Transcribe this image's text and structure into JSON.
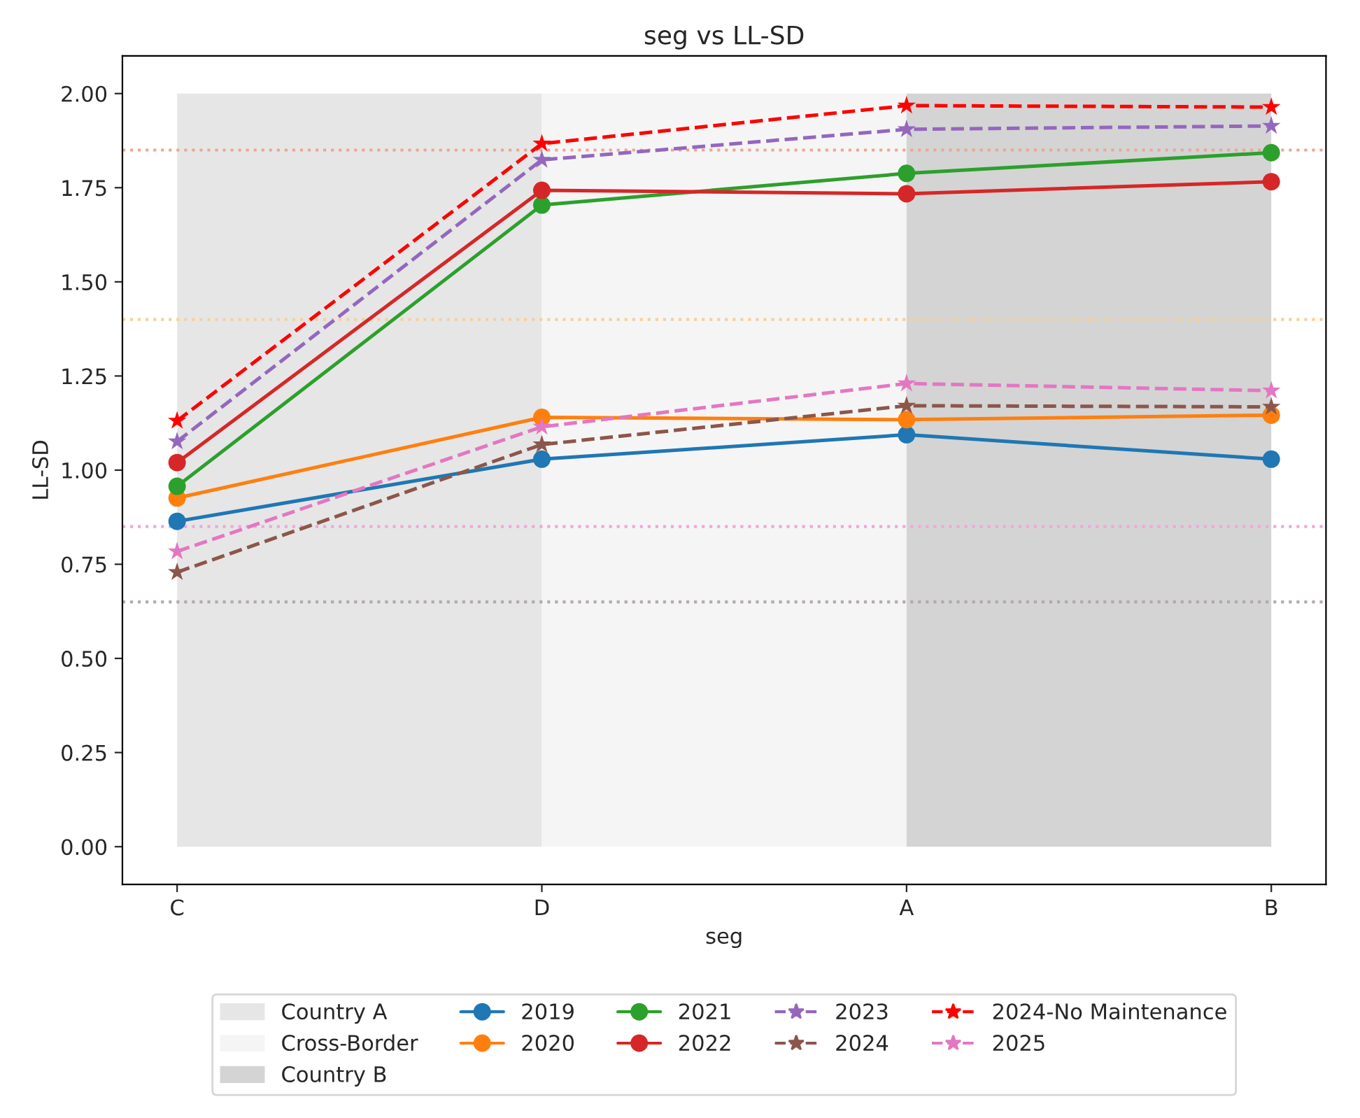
{
  "chart_data": {
    "type": "line",
    "title": "seg vs LL-SD",
    "xlabel": "seg",
    "ylabel": "LL-SD",
    "categories": [
      "C",
      "D",
      "A",
      "B"
    ],
    "series": [
      {
        "name": "2019",
        "color": "#1f77b4",
        "marker": "circle",
        "line_style": "solid",
        "values": [
          0.864,
          1.029,
          1.094,
          1.029
        ]
      },
      {
        "name": "2020",
        "color": "#ff7f0e",
        "marker": "circle",
        "line_style": "solid",
        "values": [
          0.926,
          1.14,
          1.134,
          1.146
        ]
      },
      {
        "name": "2021",
        "color": "#2ca02c",
        "marker": "circle",
        "line_style": "solid",
        "values": [
          0.957,
          1.704,
          1.788,
          1.843
        ]
      },
      {
        "name": "2022",
        "color": "#d62728",
        "marker": "circle",
        "line_style": "solid",
        "values": [
          1.02,
          1.743,
          1.734,
          1.766
        ]
      },
      {
        "name": "2023",
        "color": "#9467bd",
        "marker": "star",
        "line_style": "dashed",
        "values": [
          1.076,
          1.824,
          1.905,
          1.914
        ]
      },
      {
        "name": "2024",
        "color": "#8c564b",
        "marker": "star",
        "line_style": "dashed",
        "values": [
          0.729,
          1.068,
          1.171,
          1.168
        ]
      },
      {
        "name": "2024-No Maintenance",
        "color": "#ff0000",
        "marker": "star",
        "line_style": "dashed",
        "values": [
          1.131,
          1.867,
          1.968,
          1.964
        ]
      },
      {
        "name": "2025",
        "color": "#e377c2",
        "marker": "star",
        "line_style": "dashed",
        "values": [
          0.784,
          1.115,
          1.23,
          1.211
        ]
      }
    ],
    "bands": [
      {
        "axis": "x",
        "from": "C",
        "to": "D",
        "label": "Country A",
        "color": "#e6e6e6"
      },
      {
        "axis": "x",
        "from": "D",
        "to": "A",
        "label": "Cross-Border",
        "color": "#f5f5f5"
      },
      {
        "axis": "x",
        "from": "A",
        "to": "B",
        "label": "Country B",
        "color": "#d4d4d4"
      }
    ],
    "ref_lines": [
      {
        "axis": "y",
        "value": 1.85,
        "color": "#eea595",
        "line_style": "dotted"
      },
      {
        "axis": "y",
        "value": 1.4,
        "color": "#f7cf9f",
        "line_style": "dotted"
      },
      {
        "axis": "y",
        "value": 0.85,
        "color": "#f0a6dc",
        "line_style": "dotted"
      },
      {
        "axis": "y",
        "value": 0.65,
        "color": "#b3a9a6",
        "line_style": "dotted"
      }
    ],
    "ylim": [
      -0.1,
      2.1
    ],
    "yticks": [
      {
        "value": 0,
        "label": "0.00"
      },
      0.25,
      {
        "value": 0.5,
        "label": "0.50"
      },
      0.75,
      {
        "value": 1,
        "label": "1.00"
      },
      1.25,
      {
        "value": 1.5,
        "label": "1.50"
      },
      1.75,
      {
        "value": 2,
        "label": "2.00"
      }
    ],
    "grid": false,
    "legend": "bottom"
  }
}
